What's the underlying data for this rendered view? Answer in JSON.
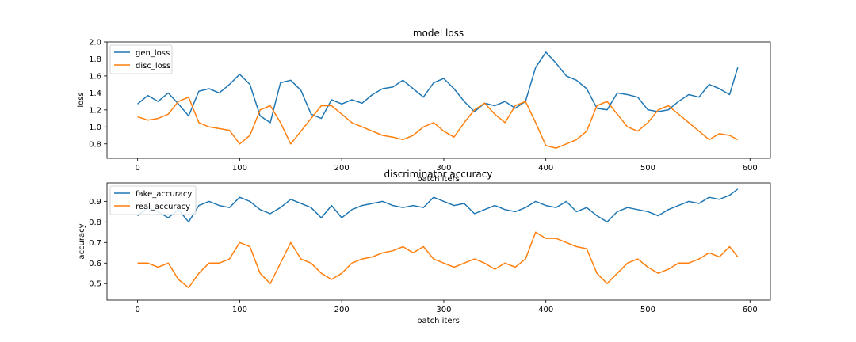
{
  "colors": {
    "blue": "#1f77b4",
    "orange": "#ff7f0e",
    "axes": "#000000",
    "background": "#ffffff"
  },
  "chart_data": [
    {
      "type": "line",
      "title": "model loss",
      "xlabel": "batch iters",
      "ylabel": "loss",
      "xlim": [
        -30,
        620
      ],
      "ylim": [
        0.63,
        2.0
      ],
      "xticks": [
        0,
        100,
        200,
        300,
        400,
        500,
        600
      ],
      "yticks": [
        0.8,
        1.0,
        1.2,
        1.4,
        1.6,
        1.8,
        2.0
      ],
      "xtick_labels": [
        "0",
        "100",
        "200",
        "300",
        "400",
        "500",
        "600"
      ],
      "ytick_labels": [
        "0.8",
        "1.0",
        "1.2",
        "1.4",
        "1.6",
        "1.8",
        "2.0"
      ],
      "legend_position": "upper-left",
      "grid": false,
      "series": [
        {
          "name": "gen_loss",
          "color": "#1f77b4",
          "x": [
            0,
            10,
            20,
            30,
            40,
            50,
            60,
            70,
            80,
            90,
            100,
            110,
            120,
            130,
            140,
            150,
            160,
            170,
            180,
            190,
            200,
            210,
            220,
            230,
            240,
            250,
            260,
            270,
            280,
            290,
            300,
            310,
            320,
            330,
            340,
            350,
            360,
            370,
            380,
            390,
            400,
            410,
            420,
            430,
            440,
            450,
            460,
            470,
            480,
            490,
            500,
            510,
            520,
            530,
            540,
            550,
            560,
            570,
            580,
            588
          ],
          "y": [
            1.27,
            1.37,
            1.3,
            1.4,
            1.27,
            1.13,
            1.42,
            1.45,
            1.4,
            1.5,
            1.62,
            1.5,
            1.13,
            1.05,
            1.52,
            1.55,
            1.43,
            1.15,
            1.1,
            1.32,
            1.27,
            1.32,
            1.28,
            1.38,
            1.45,
            1.47,
            1.55,
            1.45,
            1.35,
            1.52,
            1.57,
            1.45,
            1.3,
            1.18,
            1.28,
            1.25,
            1.3,
            1.22,
            1.3,
            1.7,
            1.88,
            1.75,
            1.6,
            1.55,
            1.45,
            1.22,
            1.2,
            1.4,
            1.38,
            1.35,
            1.2,
            1.18,
            1.2,
            1.3,
            1.38,
            1.35,
            1.5,
            1.45,
            1.38,
            1.7
          ]
        },
        {
          "name": "disc_loss",
          "color": "#ff7f0e",
          "x": [
            0,
            10,
            20,
            30,
            40,
            50,
            60,
            70,
            80,
            90,
            100,
            110,
            120,
            130,
            140,
            150,
            160,
            170,
            180,
            190,
            200,
            210,
            220,
            230,
            240,
            250,
            260,
            270,
            280,
            290,
            300,
            310,
            320,
            330,
            340,
            350,
            360,
            370,
            380,
            390,
            400,
            410,
            420,
            430,
            440,
            450,
            460,
            470,
            480,
            490,
            500,
            510,
            520,
            530,
            540,
            550,
            560,
            570,
            580,
            588
          ],
          "y": [
            1.12,
            1.08,
            1.1,
            1.15,
            1.3,
            1.35,
            1.05,
            1.0,
            0.98,
            0.96,
            0.8,
            0.9,
            1.2,
            1.25,
            1.05,
            0.8,
            0.95,
            1.1,
            1.25,
            1.25,
            1.15,
            1.05,
            1.0,
            0.95,
            0.9,
            0.88,
            0.85,
            0.9,
            1.0,
            1.05,
            0.95,
            0.88,
            1.05,
            1.2,
            1.28,
            1.15,
            1.05,
            1.25,
            1.3,
            1.05,
            0.78,
            0.75,
            0.8,
            0.85,
            0.95,
            1.25,
            1.3,
            1.15,
            1.0,
            0.95,
            1.05,
            1.2,
            1.25,
            1.15,
            1.05,
            0.95,
            0.85,
            0.92,
            0.9,
            0.85
          ]
        }
      ]
    },
    {
      "type": "line",
      "title": "discriminator accuracy",
      "xlabel": "batch iters",
      "ylabel": "accuracy",
      "xlim": [
        -30,
        620
      ],
      "ylim": [
        0.42,
        0.99
      ],
      "xticks": [
        0,
        100,
        200,
        300,
        400,
        500,
        600
      ],
      "yticks": [
        0.5,
        0.6,
        0.7,
        0.8,
        0.9
      ],
      "xtick_labels": [
        "0",
        "100",
        "200",
        "300",
        "400",
        "500",
        "600"
      ],
      "ytick_labels": [
        "0.5",
        "0.6",
        "0.7",
        "0.8",
        "0.9"
      ],
      "legend_position": "upper-left",
      "grid": false,
      "series": [
        {
          "name": "fake_accuracy",
          "color": "#1f77b4",
          "x": [
            0,
            10,
            20,
            30,
            40,
            50,
            60,
            70,
            80,
            90,
            100,
            110,
            120,
            130,
            140,
            150,
            160,
            170,
            180,
            190,
            200,
            210,
            220,
            230,
            240,
            250,
            260,
            270,
            280,
            290,
            300,
            310,
            320,
            330,
            340,
            350,
            360,
            370,
            380,
            390,
            400,
            410,
            420,
            430,
            440,
            450,
            460,
            470,
            480,
            490,
            500,
            510,
            520,
            530,
            540,
            550,
            560,
            570,
            580,
            588
          ],
          "y": [
            0.83,
            0.87,
            0.85,
            0.82,
            0.86,
            0.8,
            0.88,
            0.9,
            0.88,
            0.87,
            0.92,
            0.9,
            0.86,
            0.84,
            0.87,
            0.91,
            0.89,
            0.87,
            0.82,
            0.88,
            0.82,
            0.86,
            0.88,
            0.89,
            0.9,
            0.88,
            0.87,
            0.88,
            0.87,
            0.92,
            0.9,
            0.88,
            0.89,
            0.84,
            0.86,
            0.88,
            0.86,
            0.85,
            0.87,
            0.9,
            0.88,
            0.87,
            0.9,
            0.85,
            0.87,
            0.83,
            0.8,
            0.85,
            0.87,
            0.86,
            0.85,
            0.83,
            0.86,
            0.88,
            0.9,
            0.89,
            0.92,
            0.91,
            0.93,
            0.96
          ]
        },
        {
          "name": "real_accuracy",
          "color": "#ff7f0e",
          "x": [
            0,
            10,
            20,
            30,
            40,
            50,
            60,
            70,
            80,
            90,
            100,
            110,
            120,
            130,
            140,
            150,
            160,
            170,
            180,
            190,
            200,
            210,
            220,
            230,
            240,
            250,
            260,
            270,
            280,
            290,
            300,
            310,
            320,
            330,
            340,
            350,
            360,
            370,
            380,
            390,
            400,
            410,
            420,
            430,
            440,
            450,
            460,
            470,
            480,
            490,
            500,
            510,
            520,
            530,
            540,
            550,
            560,
            570,
            580,
            588
          ],
          "y": [
            0.6,
            0.6,
            0.58,
            0.6,
            0.52,
            0.48,
            0.55,
            0.6,
            0.6,
            0.62,
            0.7,
            0.68,
            0.55,
            0.5,
            0.6,
            0.7,
            0.62,
            0.6,
            0.55,
            0.52,
            0.55,
            0.6,
            0.62,
            0.63,
            0.65,
            0.66,
            0.68,
            0.65,
            0.68,
            0.62,
            0.6,
            0.58,
            0.6,
            0.62,
            0.6,
            0.57,
            0.6,
            0.58,
            0.62,
            0.75,
            0.72,
            0.72,
            0.7,
            0.68,
            0.67,
            0.55,
            0.5,
            0.55,
            0.6,
            0.62,
            0.58,
            0.55,
            0.57,
            0.6,
            0.6,
            0.62,
            0.65,
            0.63,
            0.68,
            0.63
          ]
        }
      ]
    }
  ]
}
